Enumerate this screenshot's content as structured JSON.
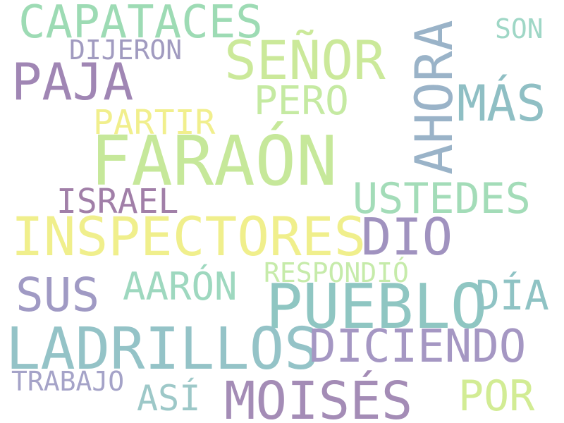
{
  "words": [
    {
      "text": "FARAÓN",
      "color": "#c6e89a"
    },
    {
      "text": "PUEBLO",
      "color": "#8fc6c2"
    },
    {
      "text": "INSPECTORES",
      "color": "#f0ef8c"
    },
    {
      "text": "LADRILLOS",
      "color": "#94c3c7"
    },
    {
      "text": "AHORA",
      "color": "#9ab3c8"
    },
    {
      "text": "MOISÉS",
      "color": "#a48cb6"
    },
    {
      "text": "SEÑOR",
      "color": "#cbe99a"
    },
    {
      "text": "DICIENDO",
      "color": "#a597c3"
    },
    {
      "text": "CAPATACES",
      "color": "#9ddbb4"
    },
    {
      "text": "PAJA",
      "color": "#a086b4"
    },
    {
      "text": "DIO",
      "color": "#a092bf"
    },
    {
      "text": "MÁS",
      "color": "#8fbfc4"
    },
    {
      "text": "SUS",
      "color": "#a09ac4"
    },
    {
      "text": "USTEDES",
      "color": "#a3dcb8"
    },
    {
      "text": "PERO",
      "color": "#c5eaa2"
    },
    {
      "text": "POR",
      "color": "#d2ec94"
    },
    {
      "text": "DÍA",
      "color": "#8fc3c4"
    },
    {
      "text": "AARÓN",
      "color": "#9ed8bf"
    },
    {
      "text": "ISRAEL",
      "color": "#a17fa8"
    },
    {
      "text": "PARTIR",
      "color": "#f1ef8d"
    },
    {
      "text": "ASÍ",
      "color": "#9dc8c8"
    },
    {
      "text": "RESPONDIÓ",
      "color": "#c6ebaa"
    },
    {
      "text": "TRABAJO",
      "color": "#a5a3c8"
    },
    {
      "text": "DIJERON",
      "color": "#a19bc0"
    },
    {
      "text": "SON",
      "color": "#9fd7c6"
    }
  ]
}
